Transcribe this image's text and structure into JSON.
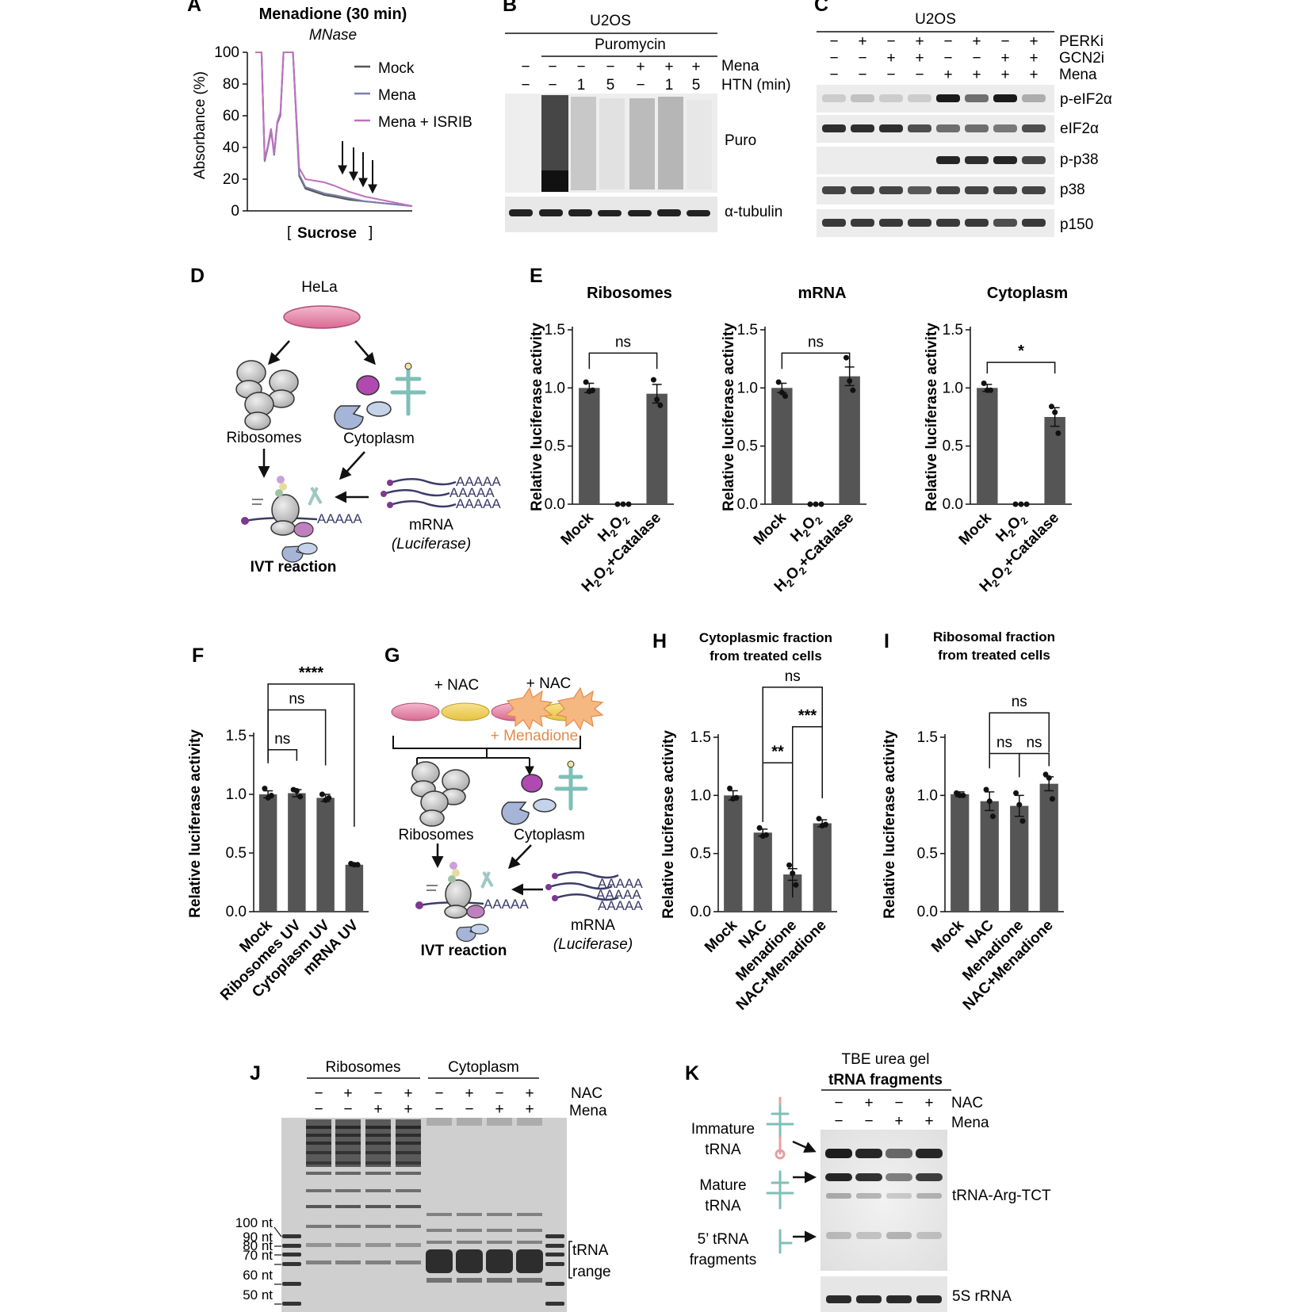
{
  "panels": {
    "a": {
      "letter": "A",
      "title": "Menadione (30 min)",
      "subtitle": "MNase",
      "ylabel": "Absorbance (%)",
      "xlabel_l": "[",
      "xlabel_m": "Sucrose",
      "xlabel_r": "]",
      "legend": [
        "Mock",
        "Mena",
        "Mena + ISRIB"
      ]
    },
    "b": {
      "letter": "B",
      "cell": "U2OS",
      "treat": "Puromycin",
      "row_mena": "Mena",
      "row_htn": "HTN (min)",
      "mena_marks": [
        "−",
        "−",
        "−",
        "−",
        "+",
        "+",
        "+"
      ],
      "htn_marks": [
        "−",
        "−",
        "1",
        "5",
        "−",
        "1",
        "5"
      ],
      "blot1": "Puro",
      "blot2": "α-tubulin"
    },
    "c": {
      "letter": "C",
      "cell": "U2OS",
      "rows": [
        "PERKi",
        "GCN2i",
        "Mena"
      ],
      "perki": [
        "−",
        "+",
        "−",
        "+",
        "−",
        "+",
        "−",
        "+"
      ],
      "gcn2i": [
        "−",
        "−",
        "+",
        "+",
        "−",
        "−",
        "+",
        "+"
      ],
      "mena": [
        "−",
        "−",
        "−",
        "−",
        "+",
        "+",
        "+",
        "+"
      ],
      "blots": [
        "p-eIF2α",
        "eIF2α",
        "p-p38",
        "p38",
        "p150"
      ]
    },
    "d": {
      "letter": "D",
      "top": "HeLa",
      "rib": "Ribosomes",
      "cyto": "Cytoplasm",
      "ivt": "IVT reaction",
      "mrna": "mRNA",
      "luc": "(Luciferase)",
      "polyA": "AAAAA"
    },
    "e": {
      "letter": "E",
      "ylabel": "Relative luciferase activity",
      "subtitles": [
        "Ribosomes",
        "mRNA",
        "Cytoplasm"
      ],
      "sig": [
        "ns",
        "ns",
        "*"
      ]
    },
    "f": {
      "letter": "F",
      "ylabel": "Relative luciferase activity",
      "sig": [
        "****",
        "ns",
        "ns"
      ]
    },
    "g": {
      "letter": "G",
      "nac1": "+ NAC",
      "nac2": "+ NAC",
      "mena": "+ Menadione",
      "rib": "Ribosomes",
      "cyto": "Cytoplasm",
      "ivt": "IVT reaction",
      "mrna": "mRNA",
      "luc": "(Luciferase)",
      "polyA": "AAAAA"
    },
    "h": {
      "letter": "H",
      "title1": "Cytoplasmic fraction",
      "title2": "from treated cells",
      "ylabel": "Relative luciferase activity",
      "sig": [
        "ns",
        "***",
        "**"
      ]
    },
    "i": {
      "letter": "I",
      "title1": "Ribosomal fraction",
      "title2": "from treated cells",
      "ylabel": "Relative luciferase activity",
      "sig": [
        "ns",
        "ns",
        "ns"
      ]
    },
    "j": {
      "letter": "J",
      "grp1": "Ribosomes",
      "grp2": "Cytoplasm",
      "nac": "NAC",
      "mena": "Mena",
      "nac_marks": [
        "−",
        "+",
        "−",
        "+",
        "−",
        "+",
        "−",
        "+"
      ],
      "mena_marks": [
        "−",
        "−",
        "+",
        "+",
        "−",
        "−",
        "+",
        "+"
      ],
      "ladder": [
        "100 nt",
        "90 nt",
        "80 nt",
        "70 nt",
        "60 nt",
        "50 nt"
      ],
      "range1": "tRNA",
      "range2": "range"
    },
    "k": {
      "letter": "K",
      "title1": "TBE urea gel",
      "title2": "tRNA fragments",
      "nac": "NAC",
      "mena": "Mena",
      "nac_marks": [
        "−",
        "+",
        "−",
        "+"
      ],
      "mena_marks": [
        "−",
        "−",
        "+",
        "+"
      ],
      "immature1": "Immature",
      "immature2": "tRNA",
      "mature1": "Mature",
      "mature2": "tRNA",
      "frag1": "5’ tRNA",
      "frag2": "fragments",
      "blot1": "tRNA-Arg-TCT",
      "blot2": "5S rRNA"
    }
  },
  "chart_data": [
    {
      "type": "line",
      "panel": "A",
      "title": "Menadione (30 min)",
      "ylabel": "Absorbance (%)",
      "xlabel": "[Sucrose]",
      "ylim": [
        0,
        100
      ],
      "yticks": [
        0,
        20,
        40,
        60,
        80,
        100
      ],
      "x": [
        0,
        2,
        3,
        4,
        6,
        8,
        10,
        11,
        12,
        14,
        16,
        18,
        20,
        24,
        28,
        32,
        38,
        44,
        50,
        60,
        70,
        80,
        90,
        100
      ],
      "series": [
        {
          "name": "Mock",
          "color": "#555555",
          "values": [
            100,
            100,
            100,
            100,
            32,
            40,
            50,
            44,
            35,
            55,
            60,
            100,
            100,
            100,
            22,
            14,
            12,
            10,
            9,
            7,
            6,
            5,
            4,
            3
          ]
        },
        {
          "name": "Mena",
          "color": "#7a7fa8",
          "values": [
            100,
            100,
            100,
            100,
            31,
            40,
            50,
            44,
            35,
            55,
            60,
            100,
            100,
            100,
            23,
            15,
            13,
            11,
            10,
            8,
            6,
            5,
            4,
            3
          ]
        },
        {
          "name": "Mena + ISRIB",
          "color": "#c070c0",
          "values": [
            100,
            100,
            100,
            100,
            33,
            41,
            52,
            45,
            36,
            56,
            62,
            100,
            100,
            100,
            27,
            20,
            19,
            18,
            16,
            12,
            9,
            7,
            5,
            3
          ]
        }
      ]
    },
    {
      "type": "bar",
      "panel": "E",
      "title": "Ribosomes",
      "ylabel": "Relative luciferase activity",
      "ylim": [
        0,
        1.5
      ],
      "yticks": [
        0.0,
        0.5,
        1.0,
        1.5
      ],
      "categories": [
        "Mock",
        "H2O2",
        "H2O2+Catalase"
      ],
      "values": [
        1.0,
        0.0,
        0.95
      ],
      "err": [
        0.04,
        0,
        0.08
      ],
      "points": [
        [
          1.05,
          0.97,
          0.98
        ],
        [
          0.0,
          0.0,
          0.0
        ],
        [
          1.07,
          0.9,
          0.85
        ]
      ]
    },
    {
      "type": "bar",
      "panel": "E",
      "title": "mRNA",
      "ylabel": "Relative luciferase activity",
      "ylim": [
        0,
        1.5
      ],
      "yticks": [
        0.0,
        0.5,
        1.0,
        1.5
      ],
      "categories": [
        "Mock",
        "H2O2",
        "H2O2+Catalase"
      ],
      "values": [
        1.0,
        0.0,
        1.1
      ],
      "err": [
        0.04,
        0,
        0.08
      ],
      "points": [
        [
          1.05,
          0.96,
          0.93
        ],
        [
          0.0,
          0.0,
          0.0
        ],
        [
          1.26,
          1.06,
          0.98
        ]
      ]
    },
    {
      "type": "bar",
      "panel": "E",
      "title": "Cytoplasm",
      "ylabel": "Relative luciferase activity",
      "ylim": [
        0,
        1.5
      ],
      "yticks": [
        0.0,
        0.5,
        1.0,
        1.5
      ],
      "categories": [
        "Mock",
        "H2O2",
        "H2O2+Catalase"
      ],
      "values": [
        1.0,
        0.0,
        0.75
      ],
      "err": [
        0.03,
        0,
        0.08
      ],
      "points": [
        [
          1.04,
          0.98,
          0.98
        ],
        [
          0.0,
          0.0,
          0.0
        ],
        [
          0.84,
          0.79,
          0.61
        ]
      ]
    },
    {
      "type": "bar",
      "panel": "F",
      "ylabel": "Relative luciferase activity",
      "ylim": [
        0,
        1.5
      ],
      "yticks": [
        0.0,
        0.5,
        1.0,
        1.5
      ],
      "categories": [
        "Mock",
        "Ribosomes UV",
        "Cytoplasm UV",
        "mRNA UV"
      ],
      "values": [
        1.0,
        1.01,
        0.97,
        0.4
      ],
      "err": [
        0.03,
        0.03,
        0.03,
        0.01
      ],
      "points": [
        [
          1.05,
          0.97,
          0.99
        ],
        [
          1.04,
          1.03,
          0.98
        ],
        [
          1.0,
          0.95,
          0.97
        ],
        [
          0.41,
          0.4,
          0.4
        ]
      ]
    },
    {
      "type": "bar",
      "panel": "H",
      "title": "Cytoplasmic fraction from treated cells",
      "ylabel": "Relative luciferase activity",
      "ylim": [
        0,
        1.5
      ],
      "yticks": [
        0.0,
        0.5,
        1.0,
        1.5
      ],
      "categories": [
        "Mock",
        "NAC",
        "Menadione",
        "NAC+Menadione"
      ],
      "values": [
        1.0,
        0.68,
        0.32,
        0.76
      ],
      "err": [
        0.04,
        0.03,
        0.05,
        0.03
      ],
      "points": [
        [
          1.06,
          0.97,
          0.98
        ],
        [
          0.72,
          0.65,
          0.66
        ],
        [
          0.4,
          0.33,
          0.23
        ],
        [
          0.8,
          0.74,
          0.75
        ]
      ]
    },
    {
      "type": "bar",
      "panel": "I",
      "title": "Ribosomal fraction from treated cells",
      "ylabel": "Relative luciferase activity",
      "ylim": [
        0,
        1.5
      ],
      "yticks": [
        0.0,
        0.5,
        1.0,
        1.5
      ],
      "categories": [
        "Mock",
        "NAC",
        "Menadione",
        "NAC+Menadione"
      ],
      "values": [
        1.01,
        0.95,
        0.91,
        1.1
      ],
      "err": [
        0.02,
        0.08,
        0.09,
        0.06
      ],
      "points": [
        [
          1.02,
          1.0,
          1.0
        ],
        [
          1.05,
          0.95,
          0.82
        ],
        [
          1.02,
          0.92,
          0.78
        ],
        [
          1.18,
          1.15,
          0.97
        ]
      ]
    }
  ]
}
